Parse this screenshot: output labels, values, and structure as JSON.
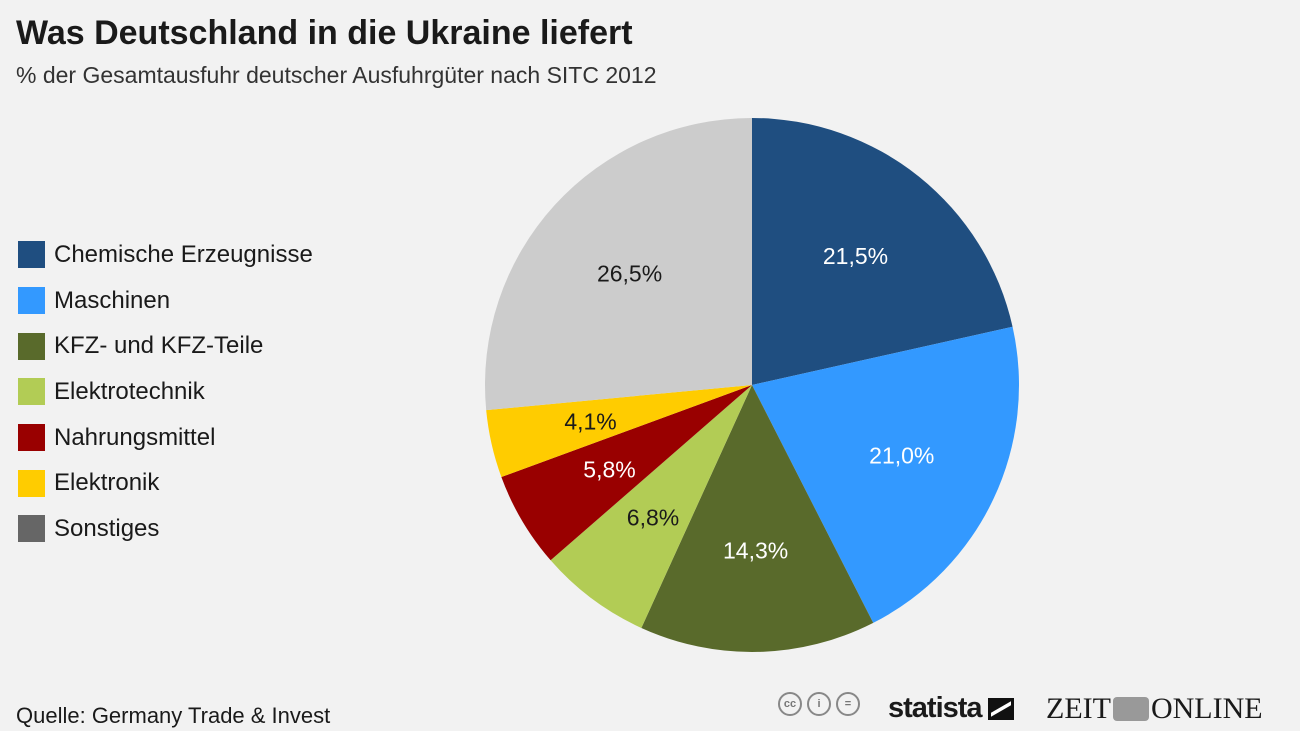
{
  "header": {
    "title": "Was Deutschland in die Ukraine liefert",
    "subtitle": "% der Gesamtausfuhr deutscher Ausfuhrgüter nach SITC 2012"
  },
  "chart_data": {
    "type": "pie",
    "title": "Was Deutschland in die Ukraine liefert",
    "subtitle": "% der Gesamtausfuhr deutscher Ausfuhrgüter nach SITC 2012",
    "legend_position": "left",
    "slices": [
      {
        "name": "Chemische Erzeugnisse",
        "value": 21.5,
        "label": "21,5%",
        "color": "#1f4e80",
        "legend_color": "#1f4e80",
        "label_color": "#ffffff"
      },
      {
        "name": "Maschinen",
        "value": 21.0,
        "label": "21,0%",
        "color": "#3399ff",
        "legend_color": "#3399ff",
        "label_color": "#ffffff"
      },
      {
        "name": "KFZ- und KFZ-Teile",
        "value": 14.3,
        "label": "14,3%",
        "color": "#596a2b",
        "legend_color": "#596a2b",
        "label_color": "#ffffff"
      },
      {
        "name": "Elektrotechnik",
        "value": 6.8,
        "label": "6,8%",
        "color": "#b2cc55",
        "legend_color": "#b2cc55",
        "label_color": "#1a1a1a"
      },
      {
        "name": "Nahrungsmittel",
        "value": 5.8,
        "label": "5,8%",
        "color": "#990000",
        "legend_color": "#990000",
        "label_color": "#ffffff"
      },
      {
        "name": "Elektronik",
        "value": 4.1,
        "label": "4,1%",
        "color": "#ffcc00",
        "legend_color": "#ffcc00",
        "label_color": "#1a1a1a"
      },
      {
        "name": "Sonstiges",
        "value": 26.5,
        "label": "26,5%",
        "color": "#cccccc",
        "legend_color": "#666666",
        "label_color": "#1a1a1a"
      }
    ]
  },
  "footer": {
    "source": "Quelle: Germany Trade & Invest",
    "cc_icons": [
      "cc-icon",
      "by-icon",
      "nd-icon"
    ],
    "statista_logo": "statista",
    "zeit_logo_left": "ZEIT",
    "zeit_logo_right": "ONLINE"
  }
}
